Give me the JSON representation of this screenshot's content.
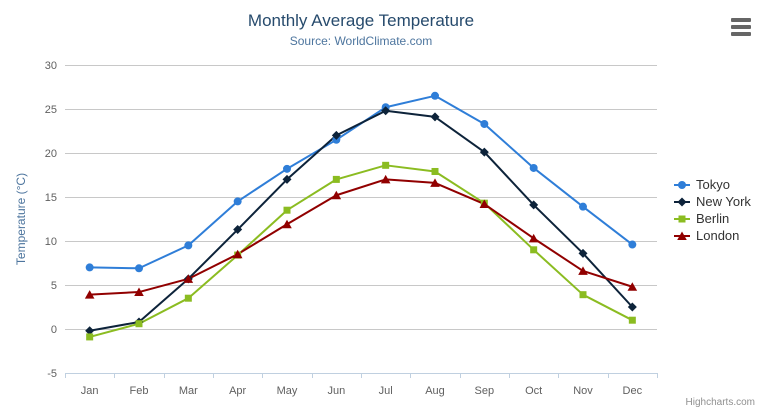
{
  "credits": "Highcharts.com",
  "export_menu": {
    "icon": "hamburger-menu-icon"
  },
  "colors": {
    "title": "#274b6d",
    "subtitle": "#4d759e",
    "axis_title": "#4d759e",
    "axis_label": "#606060",
    "axis_line": "#c0d0e0",
    "gridline": "#c8c8c8",
    "legend_text": "#333333",
    "credits_text": "#909090",
    "export_icon": "#666666"
  },
  "chart_data": {
    "type": "line",
    "title": "Monthly Average Temperature",
    "subtitle": "Source: WorldClimate.com",
    "categories": [
      "Jan",
      "Feb",
      "Mar",
      "Apr",
      "May",
      "Jun",
      "Jul",
      "Aug",
      "Sep",
      "Oct",
      "Nov",
      "Dec"
    ],
    "xlabel": "",
    "ylabel": "Temperature (°C)",
    "ylim": [
      -5,
      30
    ],
    "y_tick_interval": 5,
    "y_tick_labels": [
      "-5",
      "0",
      "5",
      "10",
      "15",
      "20",
      "25",
      "30"
    ],
    "grid": true,
    "legend_position": "right",
    "series": [
      {
        "name": "Tokyo",
        "color": "#2f7ed8",
        "marker": "circle",
        "values": [
          7.0,
          6.9,
          9.5,
          14.5,
          18.2,
          21.5,
          25.2,
          26.5,
          23.3,
          18.3,
          13.9,
          9.6
        ]
      },
      {
        "name": "New York",
        "color": "#0d233a",
        "marker": "diamond",
        "values": [
          -0.2,
          0.8,
          5.7,
          11.3,
          17.0,
          22.0,
          24.8,
          24.1,
          20.1,
          14.1,
          8.6,
          2.5
        ]
      },
      {
        "name": "Berlin",
        "color": "#8bbc21",
        "marker": "square",
        "values": [
          -0.9,
          0.6,
          3.5,
          8.4,
          13.5,
          17.0,
          18.6,
          17.9,
          14.3,
          9.0,
          3.9,
          1.0
        ]
      },
      {
        "name": "London",
        "color": "#910000",
        "marker": "triangle",
        "values": [
          3.9,
          4.2,
          5.7,
          8.5,
          11.9,
          15.2,
          17.0,
          16.6,
          14.2,
          10.3,
          6.6,
          4.8
        ]
      }
    ]
  }
}
